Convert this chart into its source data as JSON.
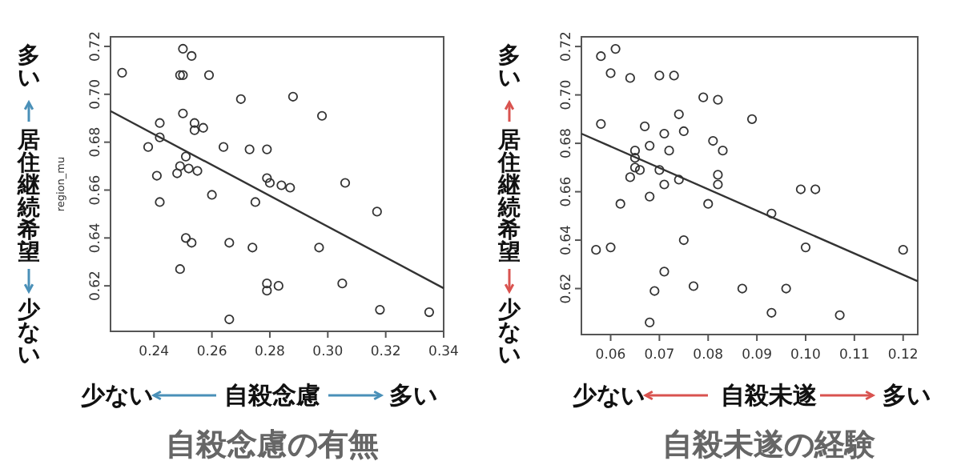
{
  "chart_data": [
    {
      "type": "scatter",
      "title": "自殺念慮の有無",
      "xlabel": "自殺念慮",
      "ylabel": "居住継続希望",
      "marker": "circle",
      "xlim": [
        0.225,
        0.34
      ],
      "ylim": [
        0.601,
        0.724
      ],
      "xticks": [
        0.24,
        0.26,
        0.28,
        {
          "value": 0.3,
          "label": "0.30"
        },
        0.32,
        0.34
      ],
      "yticks": [
        0.62,
        0.64,
        0.66,
        0.68,
        {
          "value": 0.7,
          "label": "0.70"
        },
        0.72
      ],
      "annotations": [
        "多い",
        "少ない",
        "少ない",
        "多い",
        "region_mu"
      ],
      "series": [
        {
          "type": "scatter",
          "color": "#333333",
          "x": [
            0.229,
            0.25,
            0.253,
            0.249,
            0.25,
            0.259,
            0.27,
            0.288,
            0.298,
            0.25,
            0.242,
            0.254,
            0.254,
            0.257,
            0.242,
            0.238,
            0.264,
            0.273,
            0.279,
            0.251,
            0.249,
            0.248,
            0.241,
            0.252,
            0.255,
            0.279,
            0.28,
            0.284,
            0.287,
            0.306,
            0.26,
            0.242,
            0.275,
            0.317,
            0.251,
            0.253,
            0.266,
            0.274,
            0.297,
            0.249,
            0.279,
            0.279,
            0.283,
            0.305,
            0.318,
            0.335,
            0.266
          ],
          "values": [
            0.709,
            0.719,
            0.716,
            0.708,
            0.708,
            0.708,
            0.698,
            0.699,
            0.691,
            0.692,
            0.688,
            0.688,
            0.685,
            0.686,
            0.682,
            0.678,
            0.678,
            0.677,
            0.677,
            0.674,
            0.67,
            0.667,
            0.666,
            0.669,
            0.668,
            0.665,
            0.663,
            0.662,
            0.661,
            0.663,
            0.658,
            0.655,
            0.655,
            0.651,
            0.64,
            0.638,
            0.638,
            0.636,
            0.636,
            0.627,
            0.621,
            0.618,
            0.62,
            0.621,
            0.61,
            0.609,
            0.606
          ]
        },
        {
          "type": "line",
          "marker": "none",
          "color": "#333333",
          "x": [
            0.225,
            0.34
          ],
          "values": [
            0.693,
            0.619
          ]
        }
      ]
    },
    {
      "type": "scatter",
      "title": "自殺未遂の経験",
      "xlabel": "自殺未遂",
      "ylabel": "居住継続希望",
      "marker": "circle",
      "xlim": [
        0.054,
        0.123
      ],
      "ylim": [
        0.601,
        0.724
      ],
      "xticks": [
        0.06,
        0.07,
        0.08,
        0.09,
        {
          "value": 0.1,
          "label": "0.10"
        },
        0.11,
        0.12
      ],
      "yticks": [
        0.62,
        0.64,
        0.66,
        0.68,
        {
          "value": 0.7,
          "label": "0.70"
        },
        0.72
      ],
      "annotations": [
        "多い",
        "少ない",
        "少ない",
        "多い"
      ],
      "series": [
        {
          "type": "scatter",
          "color": "#333333",
          "x": [
            0.058,
            0.061,
            0.06,
            0.064,
            0.07,
            0.073,
            0.079,
            0.082,
            0.089,
            0.074,
            0.058,
            0.067,
            0.071,
            0.075,
            0.081,
            0.068,
            0.072,
            0.065,
            0.083,
            0.065,
            0.065,
            0.066,
            0.064,
            0.07,
            0.082,
            0.074,
            0.082,
            0.071,
            0.068,
            0.062,
            0.08,
            0.099,
            0.102,
            0.093,
            0.057,
            0.06,
            0.075,
            0.1,
            0.12,
            0.071,
            0.069,
            0.077,
            0.087,
            0.096,
            0.093,
            0.107,
            0.068
          ],
          "values": [
            0.716,
            0.719,
            0.709,
            0.707,
            0.708,
            0.708,
            0.699,
            0.698,
            0.69,
            0.692,
            0.688,
            0.687,
            0.684,
            0.685,
            0.681,
            0.679,
            0.677,
            0.677,
            0.677,
            0.674,
            0.67,
            0.669,
            0.666,
            0.669,
            0.667,
            0.665,
            0.663,
            0.663,
            0.658,
            0.655,
            0.655,
            0.661,
            0.661,
            0.651,
            0.636,
            0.637,
            0.64,
            0.637,
            0.636,
            0.627,
            0.619,
            0.621,
            0.62,
            0.62,
            0.61,
            0.609,
            0.606
          ]
        },
        {
          "type": "line",
          "marker": "none",
          "color": "#333333",
          "x": [
            0.054,
            0.123
          ],
          "values": [
            0.684,
            0.623
          ]
        }
      ]
    }
  ]
}
